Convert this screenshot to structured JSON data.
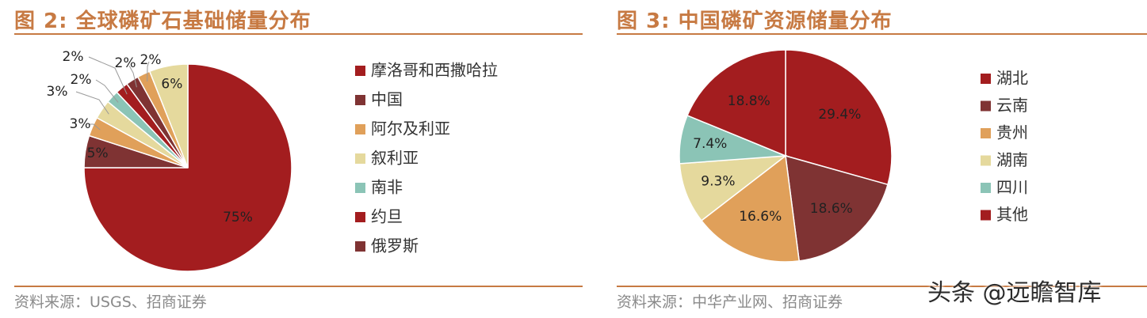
{
  "charts": [
    {
      "title": "图 2:  全球磷矿石基础储量分布",
      "source": "资料来源：USGS、招商证券"
    },
    {
      "title": "图 3:  中国磷矿资源储量分布",
      "source": "资料来源：中华产业网、招商证券"
    }
  ],
  "watermark": "头条 @远瞻智库",
  "chart_data": [
    {
      "type": "pie",
      "title": "图 2:  全球磷矿石基础储量分布",
      "legend_position": "right",
      "slices": [
        {
          "name": "摩洛哥和西撒哈拉",
          "value": 75,
          "label": "75%",
          "color": "#a31d1f"
        },
        {
          "name": "中国",
          "value": 5,
          "label": "5%",
          "color": "#7f3333"
        },
        {
          "name": "阿尔及利亚",
          "value": 3,
          "label": "3%",
          "color": "#e0a05a"
        },
        {
          "name": "叙利亚",
          "value": 3,
          "label": "3%",
          "color": "#e5d99d"
        },
        {
          "name": "南非",
          "value": 2,
          "label": "2%",
          "color": "#8bc4b6"
        },
        {
          "name": "约旦",
          "value": 2,
          "label": "2%",
          "color": "#a31d1f"
        },
        {
          "name": "俄罗斯",
          "value": 2,
          "label": "2%",
          "color": "#7f3333"
        },
        {
          "name": "",
          "value": 2,
          "label": "2%",
          "color": "#e0a05a"
        },
        {
          "name": "",
          "value": 6,
          "label": "6%",
          "color": "#e5d99d"
        }
      ]
    },
    {
      "type": "pie",
      "title": "图 3:  中国磷矿资源储量分布",
      "legend_position": "right",
      "slices": [
        {
          "name": "湖北",
          "value": 29.4,
          "label": "29.4%",
          "color": "#a31d1f"
        },
        {
          "name": "云南",
          "value": 18.6,
          "label": "18.6%",
          "color": "#7f3333"
        },
        {
          "name": "贵州",
          "value": 16.6,
          "label": "16.6%",
          "color": "#e0a05a"
        },
        {
          "name": "湖南",
          "value": 9.3,
          "label": "9.3%",
          "color": "#e5d99d"
        },
        {
          "name": "四川",
          "value": 7.4,
          "label": "7.4%",
          "color": "#8bc4b6"
        },
        {
          "name": "其他",
          "value": 18.8,
          "label": "18.8%",
          "color": "#a31d1f"
        }
      ]
    }
  ]
}
